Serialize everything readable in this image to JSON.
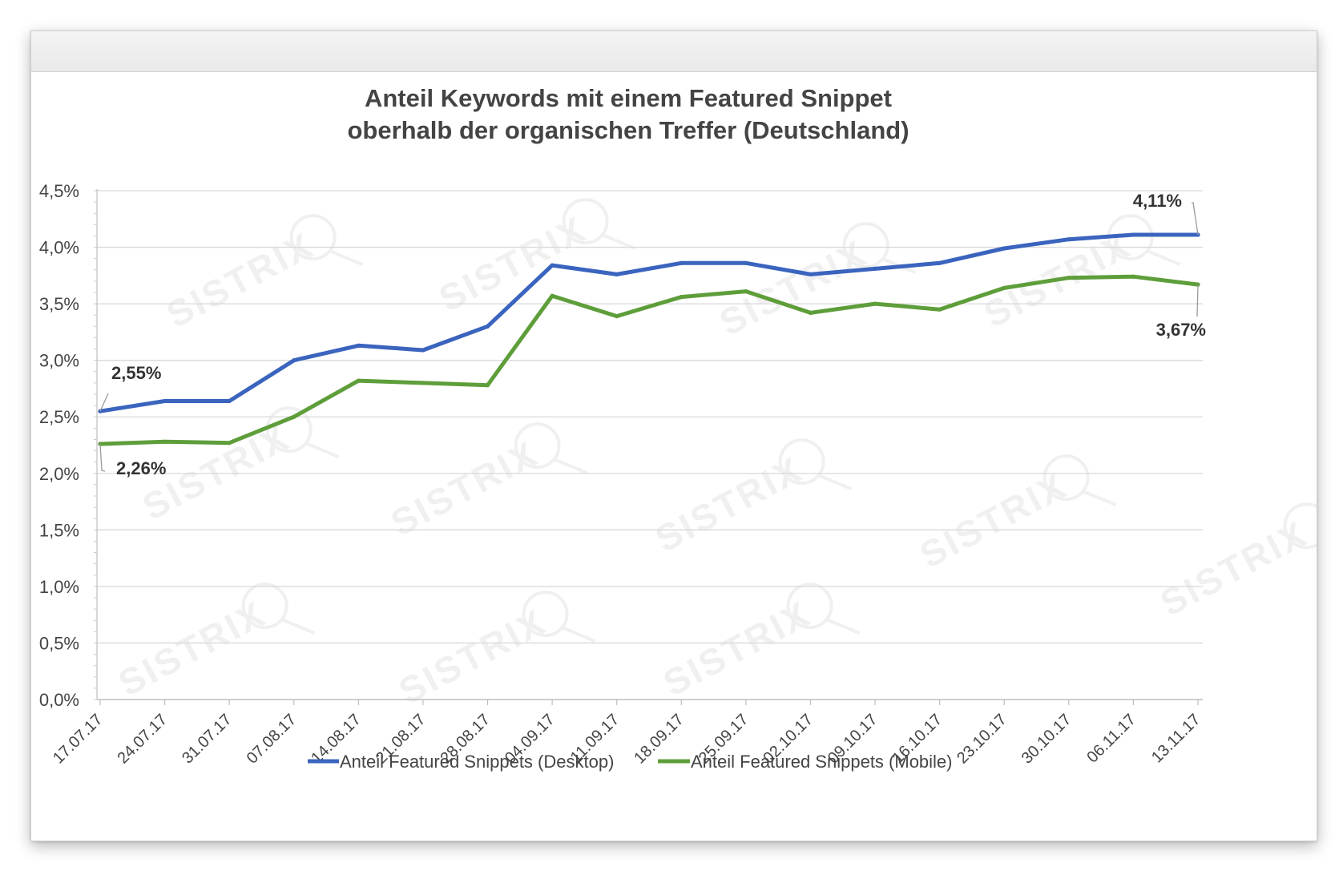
{
  "window": {
    "titlebar_label": ""
  },
  "colors": {
    "desktop": "#3a64be",
    "mobile": "#5e9e3a",
    "grid": "#d9d9d9",
    "text": "#444444",
    "watermark": "#9a9a9a"
  },
  "watermark": {
    "text": "SISTRIX"
  },
  "chart_data": {
    "type": "line",
    "title": [
      "Anteil Keywords mit einem Featured Snippet",
      "oberhalb der organischen Treffer (Deutschland)"
    ],
    "xlabel": "",
    "ylabel": "",
    "ylim": [
      0,
      4.5
    ],
    "yticks": [
      {
        "value": 0.0,
        "label": "0,0%"
      },
      {
        "value": 0.5,
        "label": "0,5%"
      },
      {
        "value": 1.0,
        "label": "1,0%"
      },
      {
        "value": 1.5,
        "label": "1,5%"
      },
      {
        "value": 2.0,
        "label": "2,0%"
      },
      {
        "value": 2.5,
        "label": "2,5%"
      },
      {
        "value": 3.0,
        "label": "3,0%"
      },
      {
        "value": 3.5,
        "label": "3,5%"
      },
      {
        "value": 4.0,
        "label": "4,0%"
      },
      {
        "value": 4.5,
        "label": "4,5%"
      }
    ],
    "categories": [
      "17.07.17",
      "24.07.17",
      "31.07.17",
      "07.08.17",
      "14.08.17",
      "21.08.17",
      "28.08.17",
      "04.09.17",
      "11.09.17",
      "18.09.17",
      "25.09.17",
      "02.10.17",
      "09.10.17",
      "16.10.17",
      "23.10.17",
      "30.10.17",
      "06.11.17",
      "13.11.17"
    ],
    "series": [
      {
        "name": "Anteil Featured Snippets (Desktop)",
        "color": "#3a64be",
        "values": [
          2.55,
          2.64,
          2.64,
          3.0,
          3.13,
          3.09,
          3.3,
          3.84,
          3.76,
          3.86,
          3.86,
          3.76,
          3.81,
          3.86,
          3.99,
          4.07,
          4.11,
          4.11
        ]
      },
      {
        "name": "Anteil Featured Snippets (Mobile)",
        "color": "#5e9e3a",
        "values": [
          2.26,
          2.28,
          2.27,
          2.5,
          2.82,
          2.8,
          2.78,
          3.57,
          3.39,
          3.56,
          3.61,
          3.42,
          3.5,
          3.45,
          3.64,
          3.73,
          3.74,
          3.67
        ]
      }
    ],
    "data_labels": [
      {
        "text": "2,55%",
        "series": 0,
        "index": 0
      },
      {
        "text": "2,26%",
        "series": 1,
        "index": 0
      },
      {
        "text": "4,11%",
        "series": 0,
        "index": 17
      },
      {
        "text": "3,67%",
        "series": 1,
        "index": 17
      }
    ],
    "legend": {
      "position": "bottom"
    }
  }
}
